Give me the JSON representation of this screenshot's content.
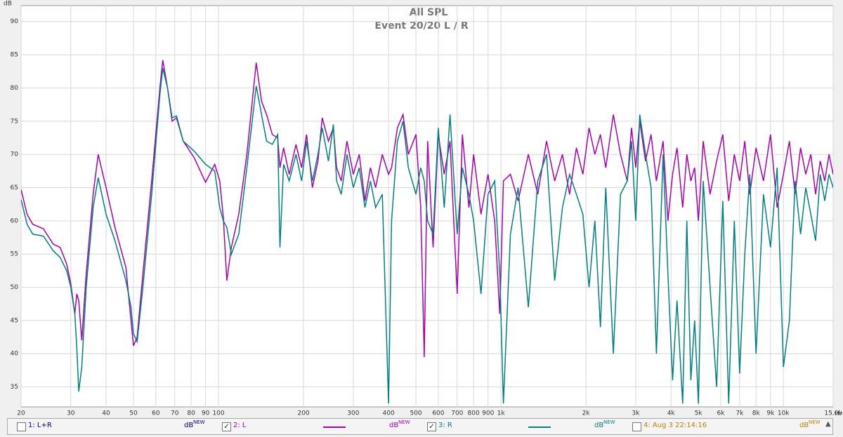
{
  "chart_data": {
    "type": "line",
    "title": "All SPL",
    "subtitle": "Event 20/20 L / R",
    "y_label": "dB",
    "x_unit": "Hz",
    "x_scale": "log",
    "grid": true,
    "xlim": [
      20,
      15000
    ],
    "ylim": [
      32,
      92.4
    ],
    "yticks": [
      35,
      40,
      45,
      50,
      55,
      60,
      65,
      70,
      75,
      80,
      85,
      90
    ],
    "xticks": [
      20,
      30,
      40,
      50,
      60,
      70,
      80,
      90,
      100,
      200,
      300,
      400,
      500,
      600,
      700,
      800,
      900,
      {
        "value": 1000,
        "label": "1k"
      },
      {
        "value": 2000,
        "label": "2k"
      },
      {
        "value": 3000,
        "label": "3k"
      },
      {
        "value": 4000,
        "label": "4k"
      },
      {
        "value": 5000,
        "label": "5k"
      },
      {
        "value": 6000,
        "label": "6k"
      },
      {
        "value": 7000,
        "label": "7k"
      },
      {
        "value": 8000,
        "label": "8k"
      },
      {
        "value": 9000,
        "label": "9k"
      },
      {
        "value": 10000,
        "label": "10k"
      },
      {
        "value": 15000,
        "label": "15,0k"
      }
    ],
    "x": [
      20,
      21,
      22,
      24,
      26,
      27.5,
      29,
      30,
      31,
      31.5,
      32,
      32.8,
      34,
      36,
      37.5,
      40,
      43,
      47,
      49,
      50,
      51.5,
      54,
      58,
      62,
      63.5,
      66,
      68.5,
      71,
      75,
      82,
      90,
      97,
      101,
      104,
      107,
      111,
      118,
      126,
      136,
      142,
      148,
      155,
      162,
      165,
      170,
      178,
      188,
      197,
      205,
      215,
      225,
      233,
      245,
      255,
      262,
      272,
      285,
      300,
      315,
      330,
      345,
      360,
      380,
      400,
      410,
      430,
      450,
      470,
      500,
      520,
      535,
      550,
      575,
      600,
      630,
      660,
      700,
      730,
      770,
      800,
      850,
      900,
      950,
      990,
      1020,
      1080,
      1150,
      1250,
      1350,
      1450,
      1550,
      1650,
      1750,
      1850,
      1950,
      2050,
      2150,
      2250,
      2350,
      2500,
      2650,
      2800,
      2900,
      3000,
      3100,
      3250,
      3400,
      3550,
      3750,
      3900,
      4050,
      4200,
      4400,
      4550,
      4700,
      4850,
      5000,
      5200,
      5500,
      5800,
      6100,
      6400,
      6700,
      7000,
      7300,
      7600,
      8000,
      8500,
      9000,
      9500,
      10000,
      10500,
      11000,
      11500,
      12000,
      12500,
      13000,
      13500,
      14000,
      14500,
      15000
    ],
    "series": [
      {
        "name": "2: L",
        "color": "#a800b0",
        "checked": true,
        "unit": "dB",
        "unit_tag": "NEW",
        "values": [
          64.7,
          61,
          59.5,
          58.8,
          56.5,
          56,
          53.5,
          50.5,
          46,
          49,
          48,
          42,
          52,
          64,
          70,
          65,
          59,
          53,
          45,
          41.2,
          42.5,
          52,
          66,
          80,
          84.2,
          80,
          75,
          75.5,
          72,
          69.5,
          65.8,
          68.5,
          66,
          60.5,
          51,
          56,
          61,
          70,
          83.8,
          78,
          76,
          73,
          72.5,
          68,
          71,
          67,
          71.5,
          68,
          73,
          65,
          69,
          75.5,
          72,
          74,
          68,
          66,
          72,
          67,
          70,
          63,
          68,
          65,
          70,
          67,
          68,
          74,
          76,
          70,
          73,
          62,
          39.5,
          72,
          56,
          73,
          67,
          72,
          49,
          73,
          62,
          70,
          61,
          67,
          60,
          46,
          66,
          67,
          63,
          70,
          64,
          72,
          66,
          70,
          64,
          71,
          67,
          74,
          70,
          73,
          68,
          76,
          70,
          66,
          74,
          68,
          75,
          69,
          73,
          66,
          72,
          60,
          67,
          71,
          62,
          70,
          66,
          68,
          60,
          72,
          64,
          69,
          73,
          63,
          70,
          66,
          72,
          64,
          71,
          66,
          73,
          62,
          67,
          72,
          64,
          71,
          67,
          70,
          64,
          69,
          66,
          70,
          67
        ]
      },
      {
        "name": "3: R",
        "color": "#008080",
        "checked": true,
        "unit": "dB",
        "unit_tag": "NEW",
        "values": [
          63.2,
          59.5,
          58,
          57.7,
          55.5,
          54.5,
          52.5,
          50,
          46,
          41,
          34.3,
          38,
          50,
          62,
          66.5,
          61,
          57,
          51,
          47,
          43,
          41.8,
          50,
          64,
          79,
          83,
          80,
          75.5,
          75.8,
          72,
          70.5,
          68.5,
          67.5,
          62,
          60,
          59,
          55,
          58,
          68,
          80.3,
          76,
          72,
          71.5,
          73,
          56,
          68.5,
          66,
          70,
          66,
          72,
          66,
          70,
          74,
          69,
          74.5,
          66,
          64,
          70,
          65,
          68,
          62,
          66,
          62,
          64,
          32.5,
          60,
          72,
          75,
          68,
          64,
          68,
          66,
          60,
          58,
          74,
          62,
          76,
          58,
          68,
          64,
          60,
          49,
          64,
          66,
          52,
          32.5,
          58,
          65,
          47,
          66,
          70,
          51,
          62,
          67,
          64,
          61,
          50,
          60,
          44,
          65,
          40,
          64,
          66,
          72,
          60,
          76,
          70,
          65,
          40,
          70,
          52,
          36,
          48,
          32.5,
          60,
          36,
          45,
          32.5,
          66,
          50,
          35,
          63,
          32.5,
          60,
          37,
          55,
          67,
          40,
          64,
          56,
          68,
          38,
          45,
          66,
          58,
          65,
          61,
          57,
          67,
          63,
          67,
          65
        ]
      }
    ],
    "other_traces": [
      {
        "name": "1: L+R",
        "color": "#000080",
        "checked": false,
        "unit": "dB",
        "unit_tag": "NEW"
      },
      {
        "name": "4: Aug 3 22:14:16",
        "color": "#c08000",
        "checked": false,
        "unit": "dB",
        "unit_tag": "NEW"
      }
    ]
  }
}
